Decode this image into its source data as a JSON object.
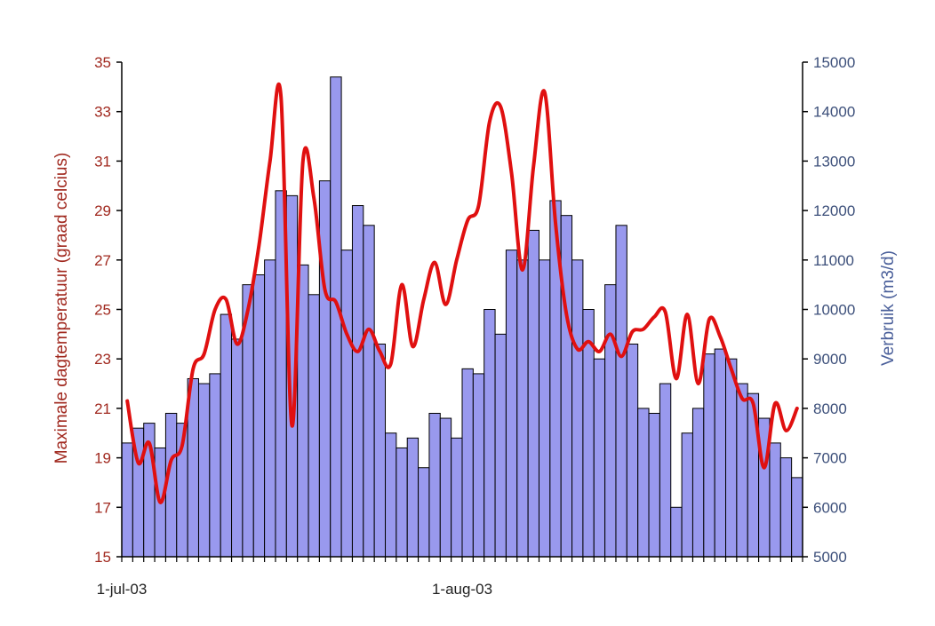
{
  "chart_data": {
    "type": "bar+line",
    "title": "",
    "x_tick_labels": [
      "1-jul-03",
      "1-aug-03"
    ],
    "start_date": "2003-07-01",
    "num_days": 62,
    "series": [
      {
        "kind": "bar",
        "axis": "right",
        "color": "#9999ee",
        "values": [
          7300,
          7600,
          7700,
          7200,
          7900,
          7700,
          8600,
          8500,
          8700,
          9900,
          9400,
          10500,
          10700,
          11000,
          12400,
          12300,
          10900,
          10300,
          12600,
          14700,
          11200,
          12100,
          11700,
          9300,
          7500,
          7200,
          7400,
          6800,
          7900,
          7800,
          7400,
          8800,
          8700,
          10000,
          9500,
          11200,
          11000,
          11600,
          11000,
          12200,
          11900,
          11000,
          10000,
          9000,
          10500,
          11700,
          9300,
          8000,
          7900,
          8500,
          6000,
          7500,
          8000,
          9100,
          9200,
          9000,
          8500,
          8300,
          7800,
          7300,
          7000,
          6600
        ],
        "name": ""
      },
      {
        "kind": "line",
        "axis": "left",
        "color": "#e01010",
        "values": [
          21.3,
          18.8,
          19.6,
          17.2,
          18.9,
          19.5,
          22.6,
          23.2,
          25.0,
          25.4,
          23.6,
          25.0,
          27.6,
          31.0,
          33.6,
          20.3,
          31.0,
          29.5,
          25.8,
          25.3,
          24.0,
          23.3,
          24.2,
          23.3,
          22.8,
          26.0,
          23.5,
          25.4,
          26.9,
          25.2,
          27.0,
          28.6,
          29.2,
          32.6,
          33.2,
          30.5,
          26.6,
          30.8,
          33.8,
          28.5,
          24.8,
          23.4,
          23.7,
          23.3,
          24.0,
          23.1,
          24.1,
          24.2,
          24.7,
          24.9,
          22.2,
          24.8,
          22.0,
          24.6,
          23.9,
          22.6,
          21.4,
          21.2,
          18.6,
          21.2,
          20.1,
          21.0
        ],
        "name": ""
      }
    ],
    "y_left": {
      "label": "Maximale dagtemperatuur (graad celcius)",
      "min": 15,
      "max": 35,
      "ticks": [
        15,
        17,
        19,
        21,
        23,
        25,
        27,
        29,
        31,
        33,
        35
      ]
    },
    "y_right": {
      "label": "Verbruik (m3/d)",
      "min": 5000,
      "max": 15000,
      "ticks": [
        5000,
        6000,
        7000,
        8000,
        9000,
        10000,
        11000,
        12000,
        13000,
        14000,
        15000
      ]
    },
    "xlabel": "",
    "grid": false,
    "legend": "none"
  }
}
